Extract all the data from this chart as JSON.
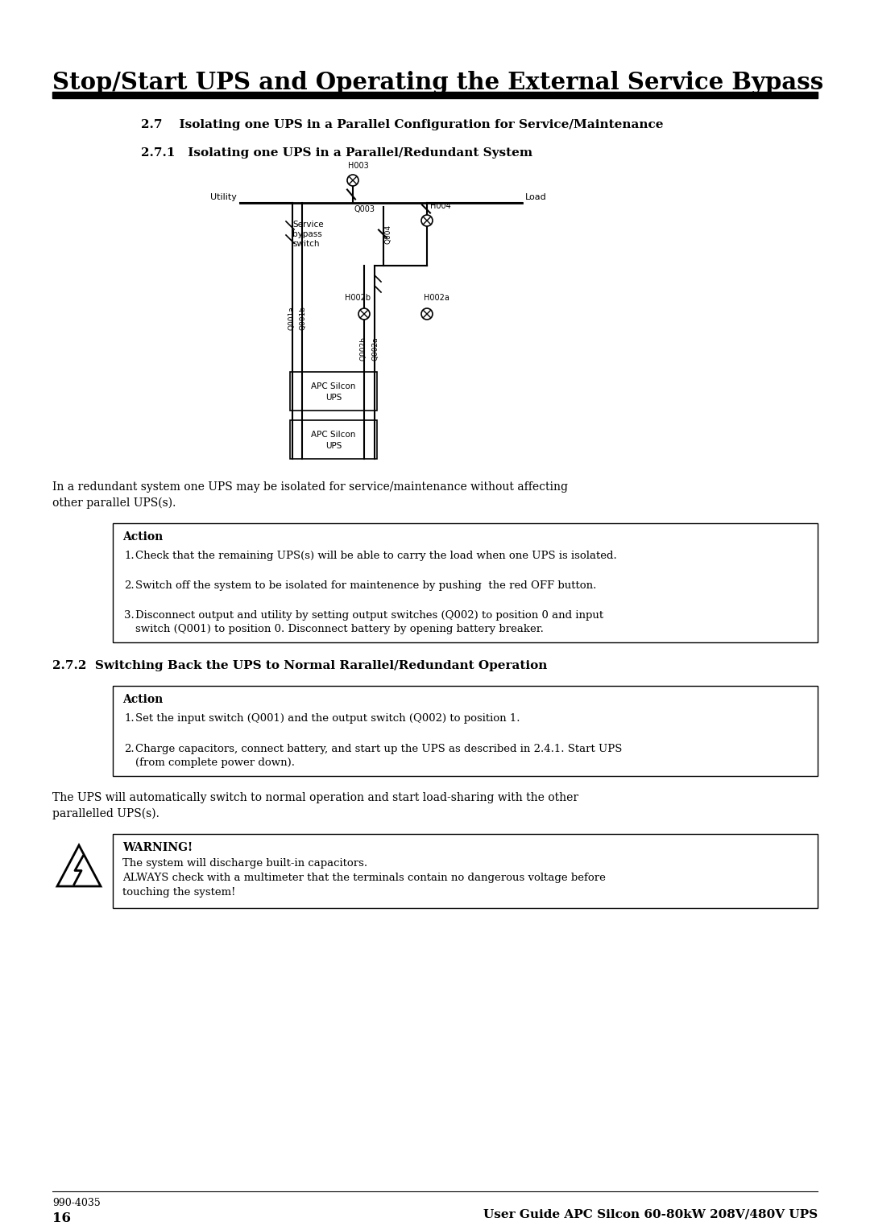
{
  "title": "Stop/Start UPS and Operating the External Service Bypass",
  "section_27": "2.7    Isolating one UPS in a Parallel Configuration for Service/Maintenance",
  "section_271": "2.7.1   Isolating one UPS in a Parallel/Redundant System",
  "section_272": "2.7.2  Switching Back the UPS to Normal Rarallel/Redundant Operation",
  "desc_271": "In a redundant system one UPS may be isolated for service/maintenance without affecting\nother parallel UPS(s).",
  "action1_title": "Action",
  "action1_items": [
    "Check that the remaining UPS(s) will be able to carry the load when one UPS is isolated.",
    "Switch off the system to be isolated for maintenence by pushing  the red OFF button.",
    "Disconnect output and utility by setting output switches (Q002) to position 0 and input\nswitch (Q001) to position 0. Disconnect battery by opening battery breaker."
  ],
  "action2_title": "Action",
  "action2_items": [
    "Set the input switch (Q001) and the output switch (Q002) to position 1.",
    "Charge capacitors, connect battery, and start up the UPS as described in 2.4.1. Start UPS\n(from complete power down)."
  ],
  "desc_272": "The UPS will automatically switch to normal operation and start load-sharing with the other\nparallelled UPS(s).",
  "warning_title": "WARNING!",
  "warning_text": "The system will discharge built-in capacitors.\nALWAYS check with a multimeter that the terminals contain no dangerous voltage before\ntouching the system!",
  "footer_left": "990-4035",
  "footer_right": "User Guide APC Silcon 60-80kW 208V/480V UPS",
  "footer_page": "16",
  "bg_color": "#ffffff"
}
